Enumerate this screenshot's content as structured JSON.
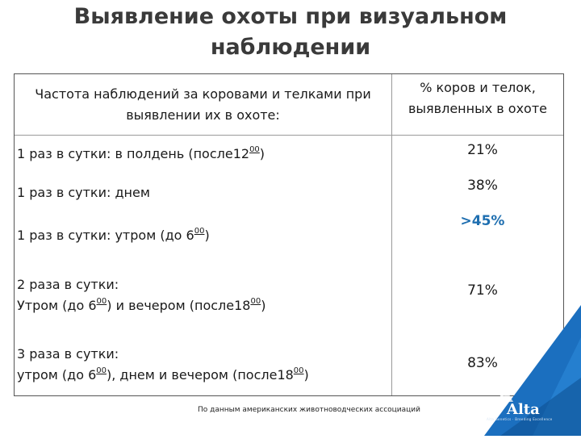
{
  "title": "Выявление охоты при визуальном наблюдении",
  "table": {
    "header_left": "Частота наблюдений за коровами и телками при выявлении их в охоте:",
    "header_right": "% коров и телок, выявленных в охоте",
    "rows": [
      {
        "line1": "1 раз в сутки: в полдень (после12",
        "sup": "00",
        "after": ")",
        "value": "21%"
      },
      {
        "line1": "1 раз в сутки: днем",
        "value": "38%"
      },
      {
        "line1": "1 раз в сутки: утром (до 6",
        "sup": "00",
        "after": ")",
        "value": ">45%"
      },
      {
        "line1": "2 раза в сутки:",
        "line2a": "Утром (до 6",
        "sup_a": "00",
        "line2b": ") и вечером (после18",
        "sup_b": "00",
        "line2c": ")",
        "value": "71%"
      },
      {
        "line1": "3 раза в сутки:",
        "line2a": "утром (до 6",
        "sup_a": "00",
        "line2b": "), днем и вечером (после18",
        "sup_b": "00",
        "line2c": ")",
        "value": "83%"
      }
    ]
  },
  "footer": "По данным американских животноводческих ассоциаций",
  "logo": {
    "name": "Alta",
    "tagline": "Alta Genetics · Breeding Excellence"
  },
  "colors": {
    "highlight": "#1f6fb0",
    "logo_blue": "#1b6fbf",
    "logo_dark": "#0d4f8f"
  }
}
